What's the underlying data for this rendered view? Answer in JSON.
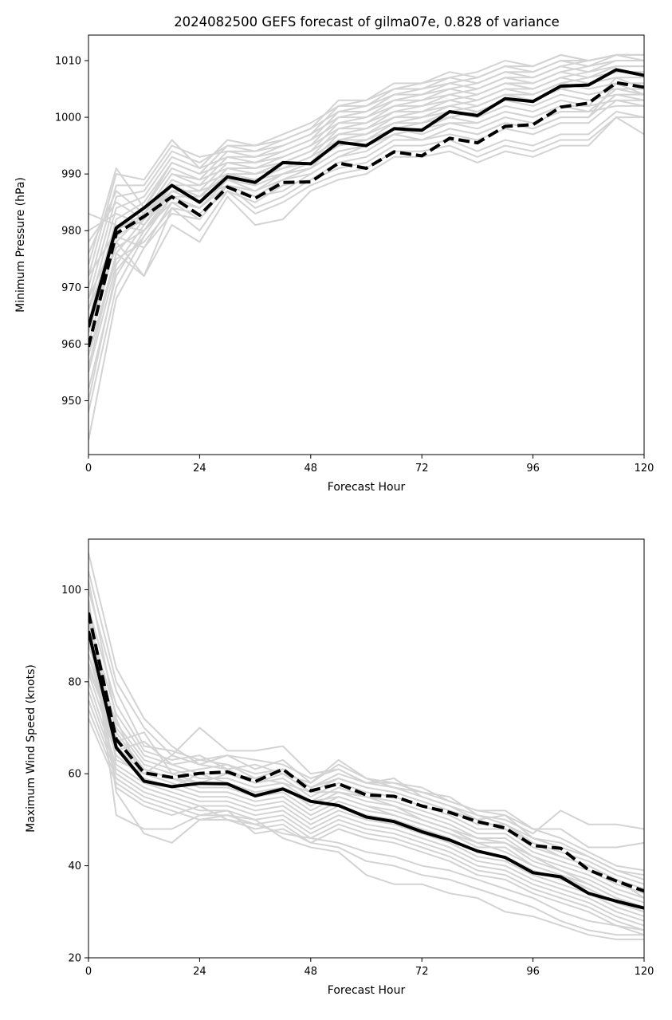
{
  "title": "2024082500 GEFS forecast of gilma07e, 0.828 of variance",
  "colors": {
    "ensemble": "#d3d3d3",
    "mean": "#000000",
    "frame": "#000000"
  },
  "chart_data": [
    {
      "type": "line",
      "xlabel": "Forecast Hour",
      "ylabel": "Minimum Pressure (hPa)",
      "xlim": [
        0,
        120
      ],
      "ylim": [
        940.5,
        1014.5
      ],
      "xticks": [
        0,
        24,
        48,
        72,
        96,
        120
      ],
      "yticks": [
        950,
        960,
        970,
        980,
        990,
        1000,
        1010
      ],
      "grid": false,
      "x": [
        0,
        6,
        12,
        18,
        24,
        30,
        36,
        42,
        48,
        54,
        60,
        66,
        72,
        78,
        84,
        90,
        96,
        102,
        108,
        114,
        120
      ],
      "ensemble_members": [
        [
          943,
          968,
          977,
          983,
          982,
          988,
          986,
          987,
          990,
          993,
          995,
          997,
          998,
          1000,
          1001,
          1003,
          1003,
          1005,
          1006,
          1008,
          1008
        ],
        [
          948,
          970,
          979,
          986,
          984,
          989,
          988,
          990,
          992,
          995,
          996,
          998,
          999,
          1001,
          1002,
          1004,
          1004,
          1006,
          1007,
          1009,
          1009
        ],
        [
          952,
          972,
          980,
          987,
          985,
          990,
          989,
          991,
          993,
          996,
          997,
          999,
          1000,
          1002,
          1003,
          1005,
          1005,
          1007,
          1008,
          1010,
          1010
        ],
        [
          955,
          974,
          981,
          988,
          986,
          991,
          990,
          992,
          994,
          997,
          998,
          1000,
          1001,
          1003,
          1004,
          1006,
          1006,
          1008,
          1009,
          1011,
          1011
        ],
        [
          958,
          976,
          982,
          989,
          987,
          992,
          991,
          993,
          995,
          998,
          999,
          1001,
          1002,
          1004,
          1005,
          1007,
          1007,
          1009,
          1010,
          1011,
          1010
        ],
        [
          960,
          978,
          983,
          990,
          988,
          993,
          992,
          994,
          996,
          999,
          1000,
          1002,
          1003,
          1005,
          1006,
          1008,
          1008,
          1010,
          1010,
          1011,
          1011
        ],
        [
          962,
          980,
          984,
          991,
          989,
          994,
          993,
          995,
          997,
          1000,
          1001,
          1003,
          1004,
          1006,
          1007,
          1009,
          1009,
          1011,
          1010,
          1011,
          1011
        ],
        [
          964,
          982,
          985,
          992,
          990,
          995,
          994,
          996,
          998,
          1001,
          1002,
          1004,
          1005,
          1007,
          1008,
          1010,
          1009,
          1011,
          1010,
          1011,
          1011
        ],
        [
          966,
          984,
          986,
          993,
          991,
          996,
          995,
          997,
          999,
          1002,
          1003,
          1005,
          1006,
          1008,
          1007,
          1009,
          1008,
          1010,
          1009,
          1010,
          1010
        ],
        [
          968,
          986,
          987,
          994,
          992,
          995,
          995,
          996,
          998,
          1003,
          1003,
          1006,
          1006,
          1007,
          1006,
          1008,
          1007,
          1009,
          1008,
          1009,
          1009
        ],
        [
          970,
          988,
          988,
          995,
          993,
          994,
          994,
          995,
          997,
          1002,
          1002,
          1005,
          1005,
          1006,
          1005,
          1007,
          1006,
          1008,
          1007,
          1008,
          1008
        ],
        [
          972,
          990,
          989,
          996,
          991,
          993,
          993,
          994,
          996,
          1001,
          1001,
          1004,
          1004,
          1005,
          1004,
          1006,
          1005,
          1007,
          1006,
          1007,
          1007
        ],
        [
          974,
          991,
          984,
          992,
          990,
          992,
          992,
          993,
          995,
          1000,
          1000,
          1003,
          1003,
          1004,
          1003,
          1005,
          1004,
          1006,
          1005,
          1006,
          1006
        ],
        [
          976,
          987,
          983,
          990,
          989,
          991,
          991,
          992,
          994,
          999,
          999,
          1002,
          1002,
          1003,
          1002,
          1004,
          1003,
          1005,
          1004,
          1005,
          1005
        ],
        [
          978,
          985,
          982,
          988,
          988,
          990,
          990,
          991,
          993,
          998,
          998,
          1001,
          1001,
          1002,
          1001,
          1003,
          1002,
          1004,
          1003,
          1004,
          1004
        ],
        [
          980,
          983,
          981,
          987,
          987,
          989,
          989,
          990,
          992,
          997,
          997,
          1000,
          1000,
          1001,
          1000,
          1002,
          1001,
          1003,
          1002,
          1003,
          1003
        ],
        [
          983,
          981,
          980,
          986,
          986,
          988,
          987,
          989,
          991,
          996,
          996,
          999,
          999,
          1000,
          999,
          1001,
          1000,
          1002,
          1001,
          1002,
          1002
        ],
        [
          956,
          976,
          972,
          981,
          978,
          986,
          981,
          982,
          987,
          989,
          990,
          993,
          993,
          994,
          992,
          994,
          993,
          995,
          995,
          1000,
          997
        ],
        [
          962,
          978,
          972,
          984,
          980,
          987,
          983,
          985,
          988,
          990,
          991,
          994,
          994,
          995,
          993,
          995,
          994,
          996,
          996,
          1000,
          1000
        ],
        [
          966,
          979,
          977,
          985,
          982,
          988,
          984,
          986,
          989,
          991,
          992,
          995,
          995,
          996,
          994,
          996,
          995,
          997,
          997,
          1001,
          1000
        ],
        [
          958,
          975,
          978,
          984,
          983,
          987,
          985,
          988,
          989,
          992,
          993,
          996,
          996,
          997,
          996,
          998,
          997,
          999,
          999,
          1003,
          1002
        ],
        [
          964,
          977,
          980,
          985,
          984,
          988,
          986,
          989,
          990,
          993,
          994,
          997,
          996,
          998,
          997,
          999,
          998,
          1000,
          1000,
          1004,
          1003
        ],
        [
          968,
          979,
          982,
          987,
          985,
          989,
          987,
          990,
          991,
          994,
          995,
          998,
          997,
          999,
          998,
          1000,
          999,
          1001,
          1001,
          1005,
          1004
        ],
        [
          950,
          973,
          979,
          986,
          984,
          989,
          988,
          990,
          991,
          994,
          995,
          997,
          996,
          998,
          997,
          999,
          998,
          1000,
          1000,
          1006,
          1004
        ],
        [
          972,
          980,
          983,
          988,
          986,
          990,
          989,
          991,
          992,
          995,
          996,
          998,
          998,
          999,
          999,
          1001,
          1000,
          1002,
          1002,
          1007,
          1005
        ]
      ],
      "mean_solid": [
        963,
        980.5,
        984,
        988,
        985,
        989.5,
        988.5,
        992,
        991.8,
        995.6,
        995,
        998,
        997.7,
        1001,
        1000.3,
        1003.3,
        1002.8,
        1005.5,
        1005.7,
        1008.4,
        1007.4
      ],
      "mean_dashed": [
        959.5,
        979.5,
        982.5,
        986,
        982.7,
        987.7,
        985.7,
        988.5,
        988.6,
        991.9,
        991,
        993.9,
        993.2,
        996.3,
        995.5,
        998.4,
        998.7,
        1001.8,
        1002.5,
        1006.1,
        1005.3
      ]
    },
    {
      "type": "line",
      "xlabel": "Forecast Hour",
      "ylabel": "Maximum Wind Speed (knots)",
      "xlim": [
        0,
        120
      ],
      "ylim": [
        20,
        111
      ],
      "xticks": [
        0,
        24,
        48,
        72,
        96,
        120
      ],
      "yticks": [
        20,
        40,
        60,
        80,
        100
      ],
      "grid": false,
      "x": [
        0,
        6,
        12,
        18,
        24,
        30,
        36,
        42,
        48,
        54,
        60,
        66,
        72,
        78,
        84,
        90,
        96,
        102,
        108,
        114,
        120
      ],
      "ensemble_members": [
        [
          108,
          83,
          72,
          66,
          62,
          64,
          61,
          63,
          58,
          63,
          59,
          58,
          57,
          54,
          52,
          52,
          48,
          48,
          44,
          44,
          45
        ],
        [
          104,
          80,
          70,
          64,
          70,
          65,
          65,
          66,
          60,
          61,
          58,
          57,
          56,
          55,
          51,
          50,
          47,
          52,
          49,
          49,
          48
        ],
        [
          100,
          78,
          66,
          65,
          63,
          62,
          59,
          61,
          57,
          60,
          58,
          59,
          55,
          53,
          50,
          51,
          46,
          44,
          42,
          39,
          37
        ],
        [
          96,
          75,
          65,
          63,
          64,
          61,
          62,
          60,
          56,
          59,
          57,
          56,
          54,
          52,
          49,
          49,
          45,
          43,
          41,
          38,
          36
        ],
        [
          93,
          73,
          64,
          62,
          60,
          60,
          58,
          59,
          55,
          58,
          56,
          55,
          53,
          51,
          48,
          48,
          44,
          42,
          40,
          37,
          35
        ],
        [
          90,
          71,
          63,
          61,
          59,
          59,
          57,
          58,
          54,
          57,
          55,
          54,
          52,
          50,
          47,
          47,
          43,
          41,
          39,
          36,
          34
        ],
        [
          88,
          70,
          62,
          60,
          58,
          58,
          56,
          57,
          53,
          56,
          54,
          53,
          51,
          49,
          46,
          46,
          42,
          40,
          38,
          35,
          33
        ],
        [
          86,
          68,
          61,
          59,
          57,
          57,
          55,
          56,
          52,
          55,
          53,
          52,
          50,
          48,
          45,
          45,
          41,
          39,
          37,
          34,
          32
        ],
        [
          84,
          66,
          60,
          58,
          56,
          56,
          54,
          55,
          51,
          54,
          52,
          51,
          49,
          47,
          44,
          44,
          40,
          38,
          36,
          33,
          31
        ],
        [
          82,
          64,
          59,
          57,
          55,
          55,
          53,
          54,
          50,
          53,
          51,
          50,
          48,
          46,
          43,
          42,
          39,
          37,
          35,
          32,
          30
        ],
        [
          80,
          62,
          58,
          56,
          54,
          54,
          52,
          53,
          49,
          52,
          50,
          49,
          47,
          45,
          42,
          41,
          38,
          36,
          34,
          31,
          29
        ],
        [
          78,
          61,
          57,
          55,
          53,
          53,
          51,
          52,
          48,
          51,
          49,
          48,
          46,
          44,
          41,
          40,
          37,
          35,
          33,
          30,
          28
        ],
        [
          76,
          60,
          56,
          54,
          52,
          52,
          50,
          51,
          47,
          50,
          48,
          47,
          45,
          43,
          40,
          39,
          36,
          34,
          32,
          29,
          27
        ],
        [
          74,
          59,
          55,
          53,
          51,
          51,
          49,
          50,
          46,
          49,
          47,
          46,
          44,
          42,
          39,
          38,
          35,
          33,
          31,
          28,
          26
        ],
        [
          72,
          58,
          54,
          52,
          50,
          50,
          48,
          49,
          45,
          48,
          46,
          45,
          43,
          41,
          38,
          37,
          34,
          32,
          30,
          27,
          25
        ],
        [
          98,
          56,
          47,
          45,
          50,
          51,
          50,
          46,
          44,
          43,
          38,
          36,
          36,
          34,
          33,
          30,
          29,
          27,
          25,
          24,
          24
        ],
        [
          95,
          51,
          48,
          48,
          51,
          52,
          47,
          48,
          45,
          44,
          41,
          40,
          38,
          37,
          35,
          33,
          31,
          28,
          26,
          25,
          25
        ],
        [
          92,
          57,
          53,
          51,
          53,
          50,
          49,
          47,
          46,
          45,
          43,
          42,
          40,
          39,
          37,
          35,
          33,
          30,
          28,
          27,
          26
        ],
        [
          89,
          63,
          60,
          64,
          62,
          61,
          58,
          60,
          58,
          62,
          59,
          57,
          55,
          53,
          51,
          49,
          46,
          45,
          42,
          39,
          38
        ],
        [
          86,
          65,
          67,
          62,
          63,
          64,
          63,
          62,
          59,
          61,
          58,
          58,
          56,
          54,
          52,
          51,
          48,
          46,
          43,
          40,
          39
        ],
        [
          83,
          67,
          69,
          60,
          61,
          62,
          60,
          61,
          57,
          59,
          57,
          56,
          54,
          52,
          50,
          48,
          45,
          42,
          40,
          37,
          33
        ],
        [
          102,
          72,
          58,
          57,
          60,
          58,
          56,
          57,
          54,
          55,
          53,
          51,
          49,
          47,
          45,
          43,
          40,
          38,
          35,
          32,
          30
        ],
        [
          94,
          69,
          61,
          59,
          58,
          60,
          59,
          58,
          56,
          56,
          55,
          53,
          50,
          48,
          46,
          45,
          42,
          39,
          36,
          33,
          31
        ]
      ],
      "mean_solid": [
        91,
        65.7,
        58.4,
        57.2,
        57.9,
        57.8,
        55.2,
        56.7,
        54,
        53.1,
        50.6,
        49.6,
        47.4,
        45.6,
        43.2,
        41.8,
        38.5,
        37.6,
        34,
        32.3,
        30.8
      ],
      "mean_dashed": [
        95,
        67.5,
        60.2,
        59.2,
        60.1,
        60.4,
        58.3,
        61,
        56.3,
        57.8,
        55.4,
        55.1,
        53,
        51.6,
        49.6,
        48.2,
        44.4,
        43.8,
        39.1,
        36.7,
        34.5
      ]
    }
  ]
}
